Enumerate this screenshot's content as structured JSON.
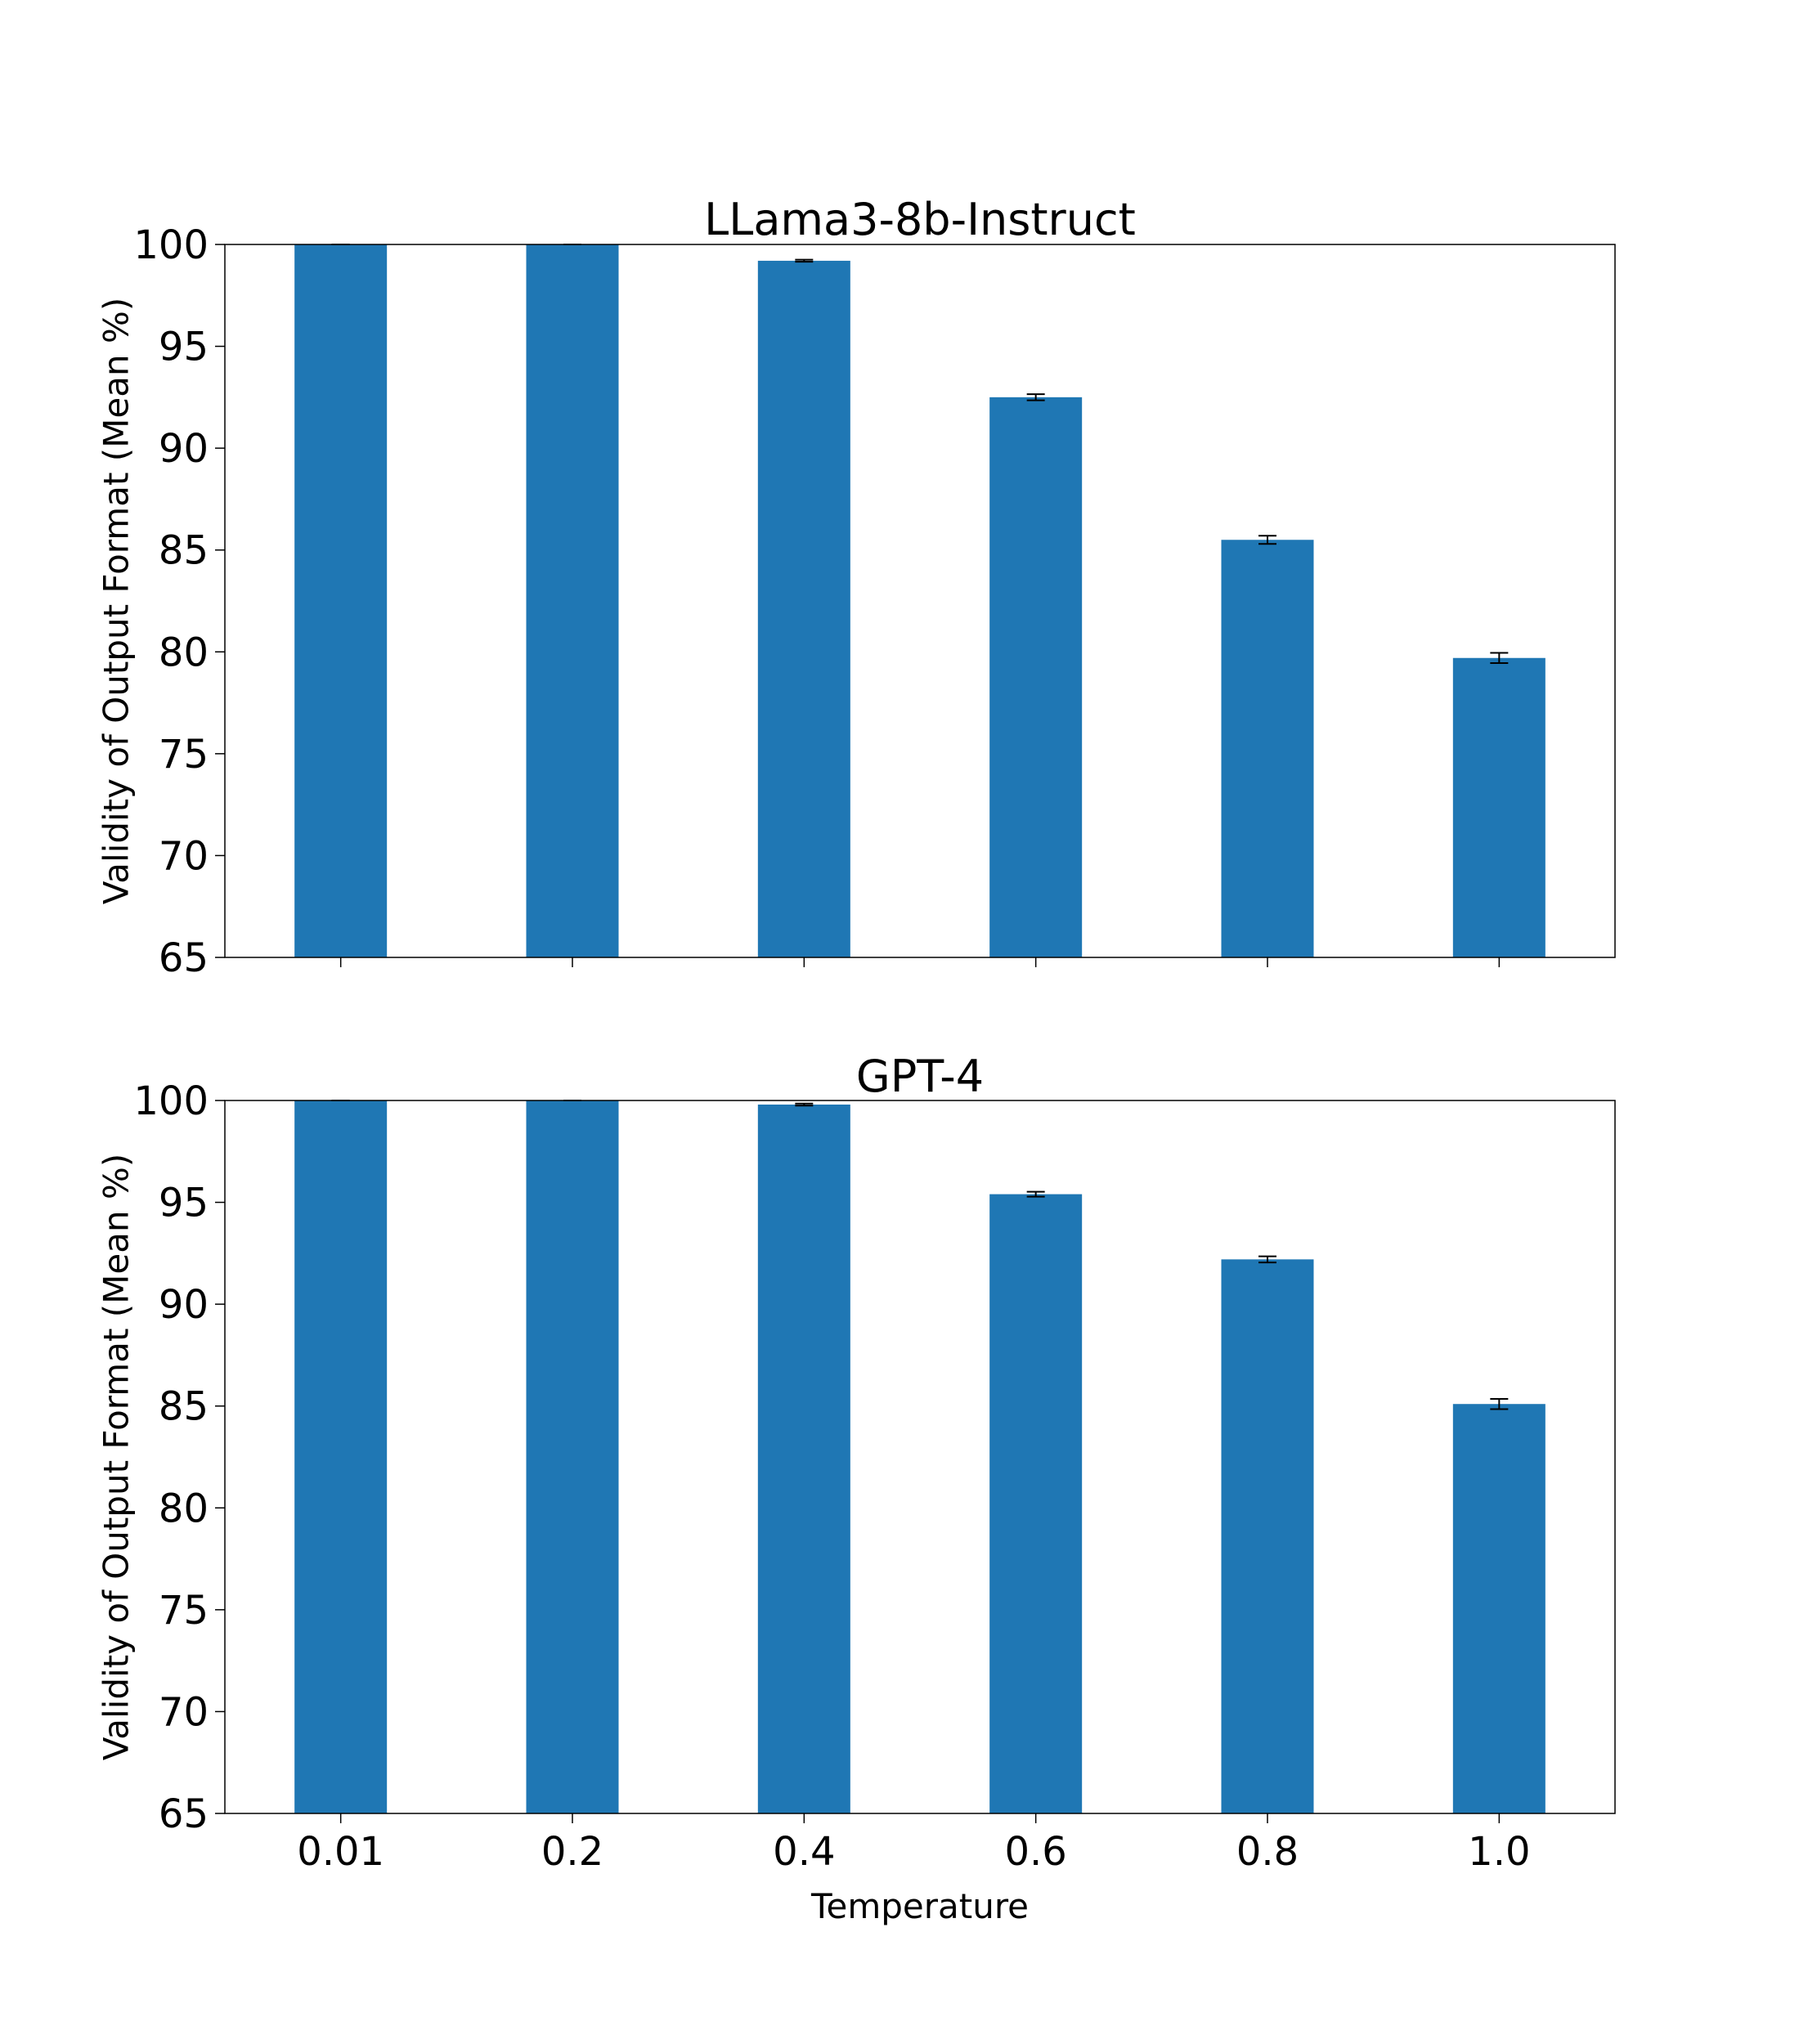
{
  "colors": {
    "bar": "#1f77b4",
    "errorbar": "#000000",
    "axes": "#000000",
    "background": "#ffffff"
  },
  "chart_data": [
    {
      "type": "bar",
      "title": "LLama3-8b-Instruct",
      "xlabel": "",
      "ylabel": "Validity of Output Format (Mean %)",
      "categories": [
        "0.01",
        "0.2",
        "0.4",
        "0.6",
        "0.8",
        "1.0"
      ],
      "values": [
        100.0,
        100.0,
        99.2,
        92.5,
        85.5,
        79.7
      ],
      "errors": [
        0.0,
        0.0,
        0.05,
        0.15,
        0.2,
        0.25
      ],
      "ylim": [
        65,
        100
      ],
      "yticks": [
        "65",
        "70",
        "75",
        "80",
        "85",
        "90",
        "95",
        "100"
      ],
      "show_xtick_labels": false,
      "grid": false
    },
    {
      "type": "bar",
      "title": "GPT-4",
      "xlabel": "Temperature",
      "ylabel": "Validity of Output Format (Mean %)",
      "categories": [
        "0.01",
        "0.2",
        "0.4",
        "0.6",
        "0.8",
        "1.0"
      ],
      "values": [
        100.0,
        100.0,
        99.8,
        95.4,
        92.2,
        85.1
      ],
      "errors": [
        0.0,
        0.0,
        0.05,
        0.12,
        0.15,
        0.25
      ],
      "ylim": [
        65,
        100
      ],
      "yticks": [
        "65",
        "70",
        "75",
        "80",
        "85",
        "90",
        "95",
        "100"
      ],
      "show_xtick_labels": true,
      "grid": false
    }
  ]
}
